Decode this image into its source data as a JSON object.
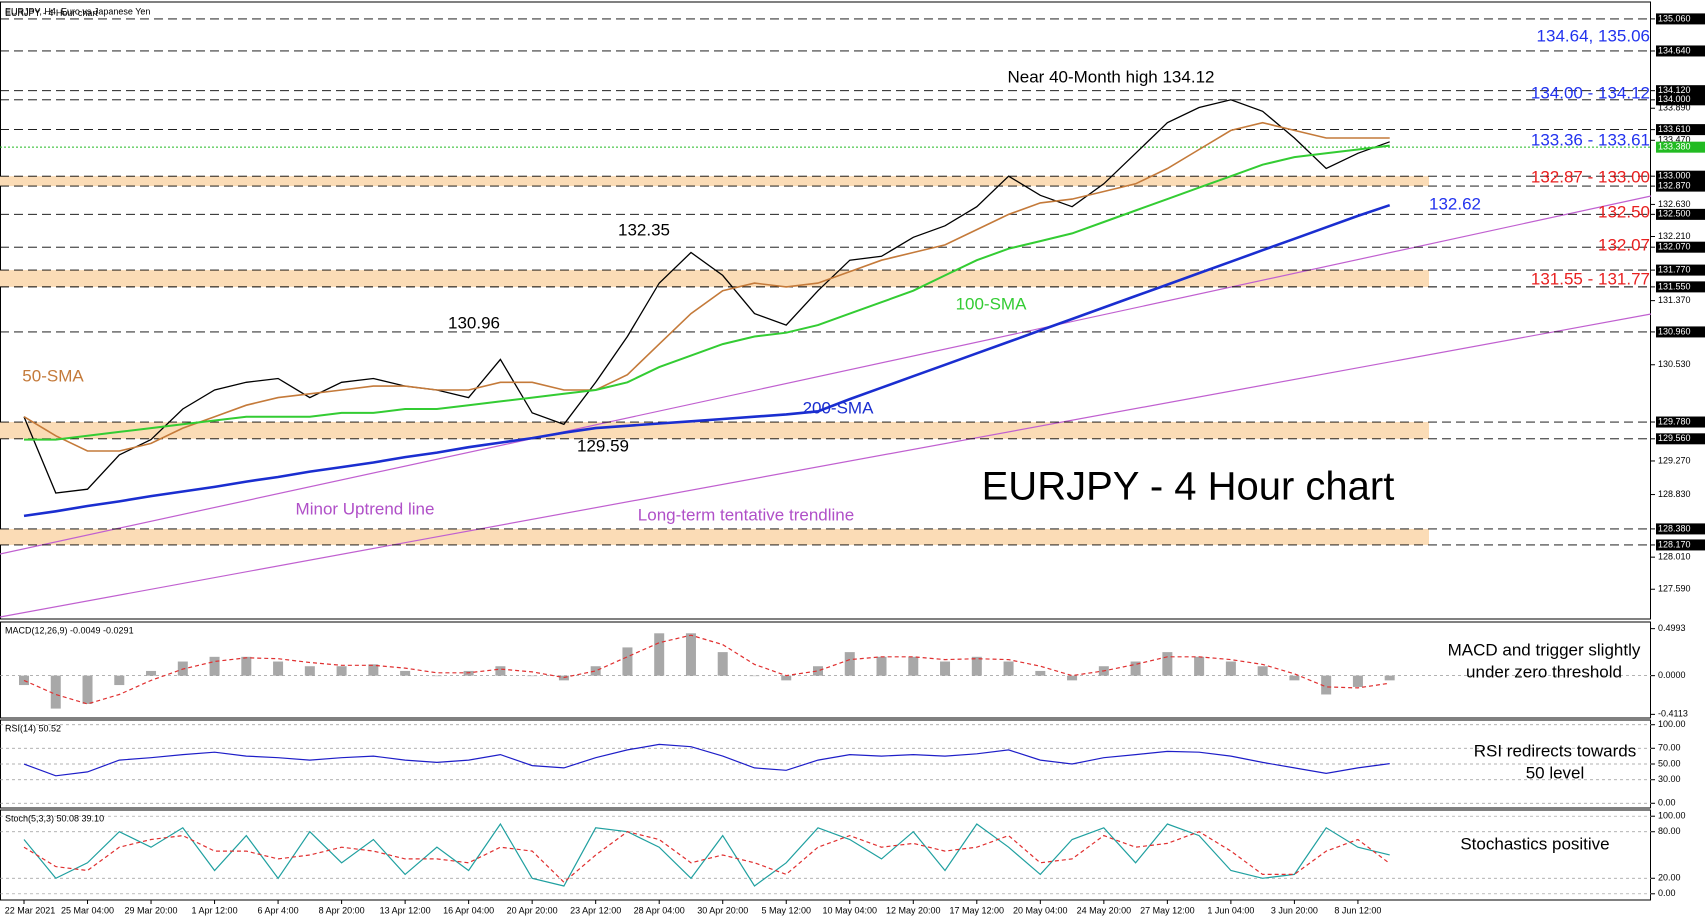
{
  "header": "EURJPY, H4:  Euro vs Japanese Yen",
  "chart_data": [
    {
      "type": "line",
      "title": "EURJPY - 4 Hour chart",
      "categories": [
        "22 Mar 2021",
        null,
        "25 Mar 04:00",
        null,
        "29 Mar 20:00",
        null,
        "1 Apr 12:00",
        null,
        "6 Apr 4:00",
        null,
        "8 Apr 20:00",
        null,
        "13 Apr 12:00",
        null,
        "16 Apr 04:00",
        null,
        "20 Apr 20:00",
        null,
        "23 Apr 12:00",
        null,
        "28 Apr 04:00",
        null,
        "30 Apr 20:00",
        null,
        "5 May 12:00",
        null,
        "10 May 04:00",
        null,
        "12 May 20:00",
        null,
        "17 May 12:00",
        null,
        "20 May 04:00",
        null,
        "24 May 20:00",
        null,
        "27 May 12:00",
        null,
        "1 Jun 04:00",
        null,
        "3 Jun 20:00",
        null,
        "8 Jun 12:00",
        null
      ],
      "series": [
        {
          "color": "#000000",
          "values": [
            129.85,
            128.85,
            128.9,
            129.35,
            129.55,
            129.95,
            130.2,
            130.3,
            130.35,
            130.1,
            130.3,
            130.35,
            130.25,
            130.2,
            130.1,
            130.6,
            129.9,
            129.75,
            130.3,
            130.9,
            131.6,
            132.0,
            131.7,
            131.2,
            131.05,
            131.5,
            131.9,
            131.95,
            132.2,
            132.35,
            132.6,
            133.0,
            132.75,
            132.6,
            132.9,
            133.3,
            133.7,
            133.9,
            134.0,
            133.85,
            133.5,
            133.1,
            133.3,
            133.45
          ]
        },
        {
          "name": "50-SMA",
          "color": "#c47a3a",
          "values": [
            129.85,
            129.6,
            129.4,
            129.4,
            129.5,
            129.7,
            129.85,
            130.0,
            130.1,
            130.15,
            130.2,
            130.25,
            130.25,
            130.2,
            130.2,
            130.3,
            130.3,
            130.2,
            130.2,
            130.4,
            130.8,
            131.2,
            131.5,
            131.6,
            131.55,
            131.6,
            131.75,
            131.9,
            132.0,
            132.1,
            132.3,
            132.5,
            132.65,
            132.7,
            132.8,
            132.9,
            133.1,
            133.35,
            133.6,
            133.7,
            133.6,
            133.5,
            133.5,
            133.5
          ]
        },
        {
          "name": "100-SMA",
          "color": "#33cc33",
          "values": [
            129.55,
            129.55,
            129.6,
            129.65,
            129.7,
            129.75,
            129.8,
            129.85,
            129.85,
            129.85,
            129.9,
            129.9,
            129.95,
            129.95,
            130.0,
            130.05,
            130.1,
            130.15,
            130.2,
            130.3,
            130.5,
            130.65,
            130.8,
            130.9,
            130.95,
            131.05,
            131.2,
            131.35,
            131.5,
            131.7,
            131.9,
            132.05,
            132.15,
            132.25,
            132.4,
            132.55,
            132.7,
            132.85,
            133.0,
            133.15,
            133.25,
            133.3,
            133.35,
            133.4
          ]
        },
        {
          "name": "200-SMA",
          "color": "#1a2ed0",
          "values": [
            128.55,
            128.61,
            128.68,
            128.74,
            128.81,
            128.87,
            128.93,
            129.0,
            129.06,
            129.13,
            129.19,
            129.25,
            129.32,
            129.38,
            129.45,
            129.51,
            129.57,
            129.64,
            129.7,
            129.73,
            129.76,
            129.79,
            129.82,
            129.85,
            129.88,
            129.92,
            130.08,
            130.23,
            130.38,
            130.53,
            130.68,
            130.83,
            130.98,
            131.13,
            131.28,
            131.43,
            131.58,
            131.73,
            131.88,
            132.03,
            132.18,
            132.33,
            132.48,
            132.62
          ]
        }
      ],
      "ylim": [
        127.2,
        135.25
      ],
      "yticks": [
        {
          "value": 135.06,
          "label": "135.060"
        },
        {
          "value": 134.64,
          "label": "134.640"
        },
        {
          "value": 134.12,
          "label": "134.120"
        },
        {
          "value": 134.0,
          "label": "134.000"
        },
        {
          "value": 133.89,
          "label": "133.890"
        },
        {
          "value": 133.61,
          "label": "133.610"
        },
        {
          "value": 133.47,
          "label": "133.470"
        },
        {
          "value": 133.0,
          "label": "133.000"
        },
        {
          "value": 132.87,
          "label": "132.870"
        },
        {
          "value": 132.63,
          "label": "132.630"
        },
        {
          "value": 132.5,
          "label": "132.500"
        },
        {
          "value": 132.21,
          "label": "132.210"
        },
        {
          "value": 132.07,
          "label": "132.070"
        },
        {
          "value": 131.77,
          "label": "131.770"
        },
        {
          "value": 131.55,
          "label": "131.550"
        },
        {
          "value": 131.37,
          "label": "131.370"
        },
        {
          "value": 130.96,
          "label": "130.960"
        },
        {
          "value": 130.53,
          "label": "130.530"
        },
        {
          "value": 129.78,
          "label": "129.780"
        },
        {
          "value": 129.56,
          "label": "129.560"
        },
        {
          "value": 129.27,
          "label": "129.270"
        },
        {
          "value": 128.83,
          "label": "128.830"
        },
        {
          "value": 128.38,
          "label": "128.380"
        },
        {
          "value": 128.17,
          "label": "128.170"
        },
        {
          "value": 128.01,
          "label": "128.010"
        },
        {
          "value": 127.59,
          "label": "127.590"
        }
      ],
      "levels": [
        135.06,
        134.64,
        134.12,
        134.0,
        133.61,
        133.0,
        132.87,
        132.5,
        132.07,
        131.77,
        131.55,
        130.96,
        129.78,
        129.56,
        128.38,
        128.17
      ],
      "zones": [
        [
          132.87,
          133.0
        ],
        [
          131.55,
          131.77
        ],
        [
          129.56,
          129.78
        ],
        [
          128.17,
          128.38
        ]
      ],
      "zone_color": "#fbdcb6",
      "current": {
        "value": 133.38,
        "label": "133.380"
      },
      "annotations": [
        "Near 40-Month high 134.12",
        "132.35",
        "130.96",
        "129.59",
        "134.64, 135.06",
        "134.00 - 134.12",
        "133.36 - 133.61",
        "132.87 - 133.00",
        "132.62",
        "132.50",
        "132.07",
        "131.55 - 131.77",
        "Minor Uptrend line",
        "Long-term tentative trendline"
      ]
    },
    {
      "type": "macd",
      "title": "MACD(12,26,9) -0.0049 -0.0291",
      "series": [
        {
          "color": "#a8a8a8",
          "values": [
            -0.1,
            -0.35,
            -0.3,
            -0.1,
            0.05,
            0.15,
            0.2,
            0.2,
            0.15,
            0.1,
            0.1,
            0.12,
            0.05,
            0.0,
            0.05,
            0.1,
            0.0,
            -0.05,
            0.1,
            0.3,
            0.45,
            0.45,
            0.25,
            0.0,
            -0.05,
            0.1,
            0.25,
            0.2,
            0.2,
            0.15,
            0.2,
            0.15,
            0.05,
            -0.05,
            0.1,
            0.15,
            0.25,
            0.2,
            0.15,
            0.1,
            -0.05,
            -0.2,
            -0.12,
            -0.05
          ]
        },
        {
          "color": "#e03030",
          "values": [
            -0.05,
            -0.2,
            -0.3,
            -0.2,
            -0.05,
            0.07,
            0.15,
            0.19,
            0.18,
            0.14,
            0.11,
            0.11,
            0.08,
            0.03,
            0.03,
            0.07,
            0.04,
            -0.02,
            0.05,
            0.2,
            0.35,
            0.43,
            0.33,
            0.12,
            0.0,
            0.05,
            0.17,
            0.2,
            0.2,
            0.17,
            0.18,
            0.17,
            0.1,
            0.0,
            0.05,
            0.12,
            0.2,
            0.2,
            0.17,
            0.12,
            0.02,
            -0.12,
            -0.13,
            -0.08
          ]
        }
      ],
      "ylim": [
        -0.45,
        0.57
      ],
      "yticks": [
        0.4993,
        {
          "value": 0,
          "label": "0.0000"
        },
        -0.4113
      ],
      "annotation": [
        "MACD and trigger slightly",
        "under zero threshold"
      ]
    },
    {
      "type": "rsi",
      "title": "RSI(14) 50.52",
      "series": [
        {
          "color": "#1e1ec8",
          "values": [
            50,
            35,
            40,
            55,
            58,
            62,
            65,
            60,
            58,
            55,
            58,
            60,
            55,
            52,
            55,
            62,
            48,
            45,
            58,
            68,
            75,
            72,
            60,
            45,
            42,
            55,
            62,
            60,
            62,
            60,
            63,
            68,
            55,
            50,
            58,
            62,
            66,
            65,
            60,
            52,
            45,
            38,
            45,
            50.52
          ]
        }
      ],
      "ylim": [
        -6,
        106
      ],
      "yticks": [
        {
          "value": 100,
          "label": "100.00"
        },
        {
          "value": 70,
          "label": "70.00"
        },
        {
          "value": 50,
          "label": "50.00"
        },
        {
          "value": 30,
          "label": "30.00"
        },
        {
          "value": 0,
          "label": "0.00"
        }
      ],
      "annotation": [
        "RSI redirects towards",
        "50 level"
      ]
    },
    {
      "type": "stoch",
      "title": "Stoch(5,3,3) 50.08 39.10",
      "series": [
        {
          "color": "#20a0a0",
          "values": [
            70,
            20,
            40,
            80,
            60,
            85,
            30,
            75,
            20,
            80,
            40,
            70,
            25,
            60,
            30,
            90,
            20,
            10,
            85,
            80,
            60,
            20,
            75,
            10,
            40,
            85,
            70,
            45,
            80,
            30,
            90,
            60,
            25,
            70,
            85,
            40,
            90,
            75,
            30,
            20,
            25,
            85,
            60,
            50.08
          ]
        },
        {
          "color": "#e03030",
          "values": [
            60,
            35,
            30,
            60,
            70,
            75,
            55,
            55,
            45,
            50,
            60,
            55,
            45,
            45,
            40,
            60,
            55,
            15,
            50,
            80,
            70,
            40,
            50,
            40,
            25,
            60,
            75,
            60,
            65,
            55,
            60,
            75,
            40,
            45,
            75,
            60,
            65,
            80,
            55,
            25,
            25,
            55,
            70,
            39.1
          ]
        }
      ],
      "ylim": [
        -8,
        108
      ],
      "yticks": [
        {
          "value": 100,
          "label": "100.00"
        },
        {
          "value": 80,
          "label": "80.00"
        },
        {
          "value": 20,
          "label": "20.00"
        },
        {
          "value": 0,
          "label": "0.00"
        }
      ],
      "annotation": [
        "Stochastics positive"
      ]
    }
  ]
}
